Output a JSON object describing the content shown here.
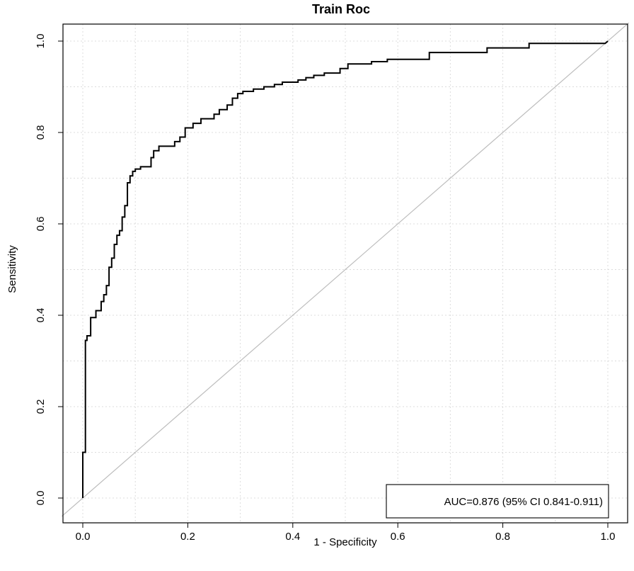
{
  "chart_data": {
    "type": "line",
    "title": "Train Roc",
    "xlabel": "1 - Specificity",
    "ylabel": "Sensitivity",
    "xlim": [
      0,
      1
    ],
    "ylim": [
      0,
      1
    ],
    "x_ticks": [
      "0.0",
      "0.2",
      "0.4",
      "0.6",
      "0.8",
      "1.0"
    ],
    "y_ticks": [
      "0.0",
      "0.2",
      "0.4",
      "0.6",
      "0.8",
      "1.0"
    ],
    "grid": true,
    "series": [
      {
        "color": "#000000",
        "x": [
          0.0,
          0.0,
          0.005,
          0.005,
          0.008,
          0.008,
          0.015,
          0.015,
          0.025,
          0.025,
          0.035,
          0.035,
          0.04,
          0.04,
          0.045,
          0.045,
          0.05,
          0.05,
          0.055,
          0.055,
          0.06,
          0.06,
          0.065,
          0.065,
          0.07,
          0.07,
          0.075,
          0.075,
          0.08,
          0.08,
          0.085,
          0.085,
          0.09,
          0.09,
          0.095,
          0.095,
          0.1,
          0.1,
          0.11,
          0.11,
          0.13,
          0.13,
          0.135,
          0.135,
          0.145,
          0.145,
          0.175,
          0.175,
          0.185,
          0.185,
          0.195,
          0.195,
          0.21,
          0.21,
          0.225,
          0.225,
          0.25,
          0.25,
          0.26,
          0.26,
          0.275,
          0.275,
          0.285,
          0.285,
          0.295,
          0.295,
          0.305,
          0.305,
          0.325,
          0.325,
          0.345,
          0.345,
          0.365,
          0.365,
          0.38,
          0.38,
          0.41,
          0.41,
          0.425,
          0.425,
          0.44,
          0.44,
          0.46,
          0.46,
          0.49,
          0.49,
          0.505,
          0.505,
          0.55,
          0.55,
          0.58,
          0.58,
          0.66,
          0.66,
          0.77,
          0.77,
          0.85,
          0.85,
          0.995,
          1.0
        ],
        "y": [
          0.0,
          0.1,
          0.1,
          0.345,
          0.345,
          0.355,
          0.355,
          0.395,
          0.395,
          0.41,
          0.41,
          0.43,
          0.43,
          0.445,
          0.445,
          0.465,
          0.465,
          0.505,
          0.505,
          0.525,
          0.525,
          0.555,
          0.555,
          0.575,
          0.575,
          0.585,
          0.585,
          0.615,
          0.615,
          0.64,
          0.64,
          0.69,
          0.69,
          0.705,
          0.705,
          0.715,
          0.715,
          0.72,
          0.72,
          0.725,
          0.725,
          0.745,
          0.745,
          0.76,
          0.76,
          0.77,
          0.77,
          0.78,
          0.78,
          0.79,
          0.79,
          0.81,
          0.81,
          0.82,
          0.82,
          0.83,
          0.83,
          0.84,
          0.84,
          0.85,
          0.85,
          0.86,
          0.86,
          0.875,
          0.875,
          0.885,
          0.885,
          0.89,
          0.89,
          0.895,
          0.895,
          0.9,
          0.9,
          0.905,
          0.905,
          0.91,
          0.91,
          0.915,
          0.915,
          0.92,
          0.92,
          0.925,
          0.925,
          0.93,
          0.93,
          0.94,
          0.94,
          0.95,
          0.95,
          0.955,
          0.955,
          0.96,
          0.96,
          0.975,
          0.975,
          0.985,
          0.985,
          0.995,
          0.995,
          1.0
        ]
      },
      {
        "color": "#bdbdbd",
        "x": [
          -0.04,
          1.04
        ],
        "y": [
          -0.04,
          1.04
        ]
      }
    ],
    "legend": {
      "text": "AUC=0.876 (95% CI 0.841-0.911)",
      "placement": "bottom-right"
    }
  }
}
